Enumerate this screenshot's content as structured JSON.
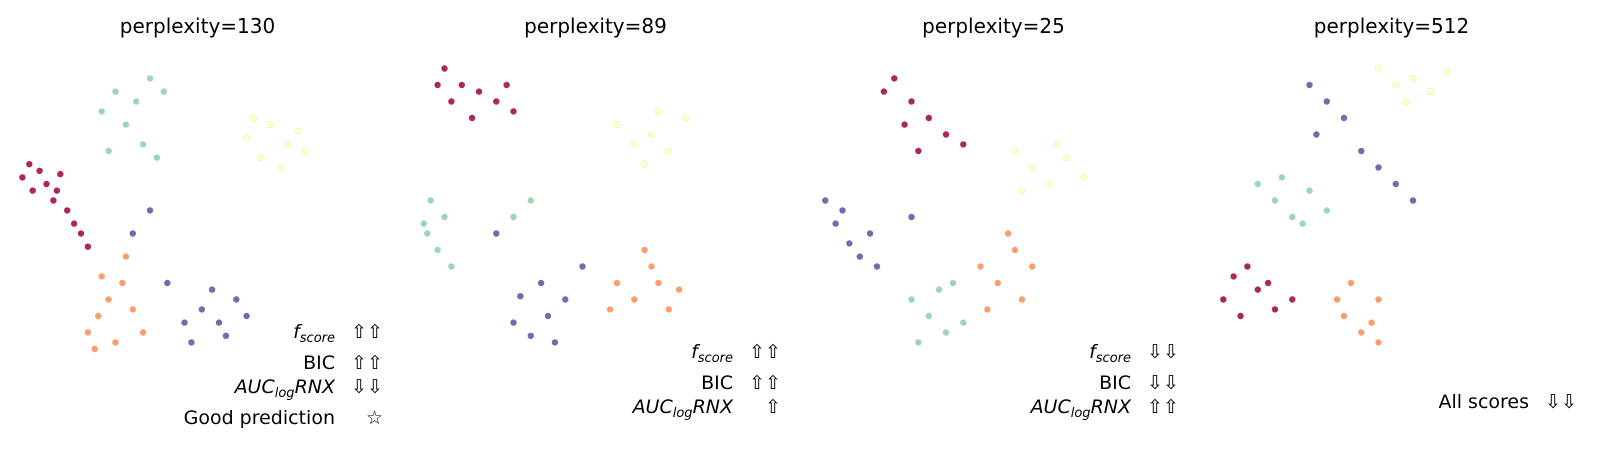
{
  "chart_data": [
    {
      "type": "scatter",
      "title": "perplexity=130",
      "annotations": [
        {
          "label": "f_score",
          "base": "f",
          "sub": "score",
          "tail": "",
          "italic": true,
          "arrows": "⇧⇧"
        },
        {
          "label": "BIC",
          "base": "BIC",
          "sub": "",
          "tail": "",
          "italic": false,
          "arrows": "⇧⇧"
        },
        {
          "label": "AUC_logRNX",
          "base": "AUC",
          "sub": "log",
          "tail": "RNX",
          "italic": true,
          "arrows": "⇩⇩"
        },
        {
          "label": "Good prediction",
          "base": "Good prediction",
          "sub": "",
          "tail": "",
          "italic": false,
          "arrows": "☆"
        }
      ],
      "clusters": [
        {
          "color": "#9e0142",
          "points": [
            [
              0.03,
              0.62
            ],
            [
              0.06,
              0.58
            ],
            [
              0.1,
              0.6
            ],
            [
              0.14,
              0.63
            ],
            [
              0.12,
              0.55
            ],
            [
              0.16,
              0.52
            ],
            [
              0.18,
              0.48
            ],
            [
              0.2,
              0.45
            ],
            [
              0.22,
              0.41
            ],
            [
              0.05,
              0.66
            ],
            [
              0.08,
              0.64
            ],
            [
              0.13,
              0.58
            ]
          ]
        },
        {
          "color": "#5e4fa2",
          "points": [
            [
              0.5,
              0.18
            ],
            [
              0.55,
              0.22
            ],
            [
              0.6,
              0.18
            ],
            [
              0.58,
              0.28
            ],
            [
              0.65,
              0.25
            ],
            [
              0.62,
              0.14
            ],
            [
              0.45,
              0.3
            ],
            [
              0.35,
              0.45
            ],
            [
              0.4,
              0.52
            ],
            [
              0.68,
              0.2
            ],
            [
              0.52,
              0.12
            ]
          ]
        },
        {
          "color": "#f88d52",
          "points": [
            [
              0.22,
              0.15
            ],
            [
              0.25,
              0.2
            ],
            [
              0.3,
              0.12
            ],
            [
              0.28,
              0.25
            ],
            [
              0.32,
              0.3
            ],
            [
              0.35,
              0.22
            ],
            [
              0.26,
              0.32
            ],
            [
              0.38,
              0.15
            ],
            [
              0.24,
              0.1
            ],
            [
              0.33,
              0.38
            ]
          ]
        },
        {
          "color": "#88d0a4",
          "points": [
            [
              0.3,
              0.88
            ],
            [
              0.36,
              0.85
            ],
            [
              0.4,
              0.92
            ],
            [
              0.26,
              0.82
            ],
            [
              0.33,
              0.78
            ],
            [
              0.44,
              0.88
            ],
            [
              0.38,
              0.72
            ],
            [
              0.28,
              0.7
            ],
            [
              0.42,
              0.68
            ]
          ]
        },
        {
          "color": "#ffffbf",
          "points": [
            [
              0.7,
              0.8
            ],
            [
              0.75,
              0.78
            ],
            [
              0.8,
              0.72
            ],
            [
              0.85,
              0.7
            ],
            [
              0.78,
              0.65
            ],
            [
              0.72,
              0.68
            ],
            [
              0.83,
              0.76
            ],
            [
              0.68,
              0.74
            ]
          ]
        }
      ]
    },
    {
      "type": "scatter",
      "title": "perplexity=89",
      "annotations": [
        {
          "label": "f_score",
          "base": "f",
          "sub": "score",
          "tail": "",
          "italic": true,
          "arrows": "⇧⇧"
        },
        {
          "label": "BIC",
          "base": "BIC",
          "sub": "",
          "tail": "",
          "italic": false,
          "arrows": "⇧⇧"
        },
        {
          "label": "AUC_logRNX",
          "base": "AUC",
          "sub": "log",
          "tail": "RNX",
          "italic": true,
          "arrows": "⇧"
        }
      ],
      "clusters": [
        {
          "color": "#9e0142",
          "points": [
            [
              0.1,
              0.95
            ],
            [
              0.15,
              0.9
            ],
            [
              0.2,
              0.88
            ],
            [
              0.25,
              0.85
            ],
            [
              0.3,
              0.82
            ],
            [
              0.12,
              0.85
            ],
            [
              0.18,
              0.8
            ],
            [
              0.08,
              0.9
            ],
            [
              0.28,
              0.9
            ]
          ]
        },
        {
          "color": "#5e4fa2",
          "points": [
            [
              0.3,
              0.18
            ],
            [
              0.35,
              0.14
            ],
            [
              0.4,
              0.2
            ],
            [
              0.45,
              0.25
            ],
            [
              0.38,
              0.3
            ],
            [
              0.32,
              0.26
            ],
            [
              0.42,
              0.12
            ],
            [
              0.5,
              0.35
            ],
            [
              0.25,
              0.45
            ]
          ]
        },
        {
          "color": "#f88d52",
          "points": [
            [
              0.6,
              0.3
            ],
            [
              0.65,
              0.25
            ],
            [
              0.7,
              0.35
            ],
            [
              0.75,
              0.22
            ],
            [
              0.68,
              0.4
            ],
            [
              0.72,
              0.3
            ],
            [
              0.58,
              0.22
            ],
            [
              0.78,
              0.28
            ]
          ]
        },
        {
          "color": "#88d0a4",
          "points": [
            [
              0.05,
              0.45
            ],
            [
              0.08,
              0.4
            ],
            [
              0.1,
              0.5
            ],
            [
              0.06,
              0.55
            ],
            [
              0.12,
              0.35
            ],
            [
              0.04,
              0.48
            ],
            [
              0.3,
              0.5
            ],
            [
              0.35,
              0.55
            ]
          ]
        },
        {
          "color": "#ffffbf",
          "points": [
            [
              0.6,
              0.78
            ],
            [
              0.65,
              0.72
            ],
            [
              0.7,
              0.75
            ],
            [
              0.75,
              0.7
            ],
            [
              0.8,
              0.8
            ],
            [
              0.68,
              0.66
            ],
            [
              0.72,
              0.82
            ]
          ]
        }
      ]
    },
    {
      "type": "scatter",
      "title": "perplexity=25",
      "annotations": [
        {
          "label": "f_score",
          "base": "f",
          "sub": "score",
          "tail": "",
          "italic": true,
          "arrows": "⇩⇩"
        },
        {
          "label": "BIC",
          "base": "BIC",
          "sub": "",
          "tail": "",
          "italic": false,
          "arrows": "⇩⇩"
        },
        {
          "label": "AUC_logRNX",
          "base": "AUC",
          "sub": "log",
          "tail": "RNX",
          "italic": true,
          "arrows": "⇧⇧"
        }
      ],
      "clusters": [
        {
          "color": "#9e0142",
          "points": [
            [
              0.25,
              0.92
            ],
            [
              0.3,
              0.85
            ],
            [
              0.35,
              0.8
            ],
            [
              0.4,
              0.75
            ],
            [
              0.32,
              0.7
            ],
            [
              0.28,
              0.78
            ],
            [
              0.45,
              0.72
            ],
            [
              0.22,
              0.88
            ]
          ]
        },
        {
          "color": "#5e4fa2",
          "points": [
            [
              0.05,
              0.55
            ],
            [
              0.08,
              0.48
            ],
            [
              0.12,
              0.42
            ],
            [
              0.15,
              0.38
            ],
            [
              0.18,
              0.45
            ],
            [
              0.1,
              0.52
            ],
            [
              0.2,
              0.35
            ],
            [
              0.3,
              0.5
            ]
          ]
        },
        {
          "color": "#f88d52",
          "points": [
            [
              0.5,
              0.35
            ],
            [
              0.55,
              0.3
            ],
            [
              0.6,
              0.4
            ],
            [
              0.62,
              0.25
            ],
            [
              0.58,
              0.45
            ],
            [
              0.65,
              0.35
            ],
            [
              0.52,
              0.22
            ]
          ]
        },
        {
          "color": "#88d0a4",
          "points": [
            [
              0.3,
              0.25
            ],
            [
              0.35,
              0.2
            ],
            [
              0.4,
              0.15
            ],
            [
              0.38,
              0.28
            ],
            [
              0.45,
              0.18
            ],
            [
              0.32,
              0.12
            ],
            [
              0.42,
              0.3
            ]
          ]
        },
        {
          "color": "#ffffbf",
          "points": [
            [
              0.6,
              0.7
            ],
            [
              0.65,
              0.65
            ],
            [
              0.7,
              0.6
            ],
            [
              0.75,
              0.68
            ],
            [
              0.8,
              0.62
            ],
            [
              0.62,
              0.58
            ],
            [
              0.72,
              0.72
            ]
          ]
        }
      ]
    },
    {
      "type": "scatter",
      "title": "perplexity=512",
      "annotations": [
        {
          "label": "All scores",
          "base": "All scores",
          "sub": "",
          "tail": "",
          "italic": false,
          "arrows": "⇩⇩"
        }
      ],
      "clusters": [
        {
          "color": "#9e0142",
          "points": [
            [
              0.05,
              0.25
            ],
            [
              0.1,
              0.2
            ],
            [
              0.15,
              0.28
            ],
            [
              0.08,
              0.32
            ],
            [
              0.2,
              0.22
            ],
            [
              0.12,
              0.35
            ],
            [
              0.18,
              0.3
            ],
            [
              0.25,
              0.25
            ]
          ]
        },
        {
          "color": "#5e4fa2",
          "points": [
            [
              0.3,
              0.9
            ],
            [
              0.35,
              0.85
            ],
            [
              0.4,
              0.8
            ],
            [
              0.32,
              0.75
            ],
            [
              0.45,
              0.7
            ],
            [
              0.5,
              0.65
            ],
            [
              0.55,
              0.6
            ],
            [
              0.6,
              0.55
            ]
          ]
        },
        {
          "color": "#f88d52",
          "points": [
            [
              0.4,
              0.2
            ],
            [
              0.45,
              0.15
            ],
            [
              0.5,
              0.25
            ],
            [
              0.42,
              0.3
            ],
            [
              0.48,
              0.18
            ],
            [
              0.38,
              0.25
            ],
            [
              0.5,
              0.12
            ]
          ]
        },
        {
          "color": "#88d0a4",
          "points": [
            [
              0.15,
              0.6
            ],
            [
              0.2,
              0.55
            ],
            [
              0.25,
              0.5
            ],
            [
              0.3,
              0.58
            ],
            [
              0.35,
              0.52
            ],
            [
              0.22,
              0.62
            ],
            [
              0.28,
              0.48
            ]
          ]
        },
        {
          "color": "#ffffbf",
          "points": [
            [
              0.5,
              0.95
            ],
            [
              0.55,
              0.9
            ],
            [
              0.6,
              0.92
            ],
            [
              0.65,
              0.88
            ],
            [
              0.7,
              0.94
            ],
            [
              0.58,
              0.85
            ]
          ]
        }
      ]
    }
  ]
}
